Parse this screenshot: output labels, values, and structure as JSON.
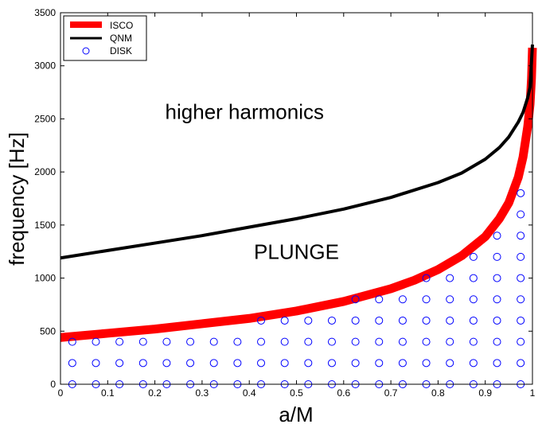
{
  "chart_data": {
    "type": "line",
    "title": "",
    "xlabel": "a/M",
    "ylabel": "frequency [Hz]",
    "xlim": [
      0,
      1
    ],
    "ylim": [
      0,
      3500
    ],
    "x_ticks": [
      "0",
      "0.1",
      "0.2",
      "0.3",
      "0.4",
      "0.5",
      "0.6",
      "0.7",
      "0.8",
      "0.9",
      "1"
    ],
    "y_ticks": [
      "0",
      "500",
      "1000",
      "1500",
      "2000",
      "2500",
      "3000",
      "3500"
    ],
    "grid": false,
    "legend": {
      "position": "top-left",
      "entries": [
        "ISCO",
        "QNM",
        "DISK"
      ]
    },
    "annotations": [
      {
        "text": "higher harmonics",
        "x": 0.39,
        "y": 2500
      },
      {
        "text": "PLUNGE",
        "x": 0.5,
        "y": 1180
      }
    ],
    "series": [
      {
        "name": "ISCO",
        "style": "thick-line",
        "color": "#ff0000",
        "x": [
          0,
          0.1,
          0.2,
          0.3,
          0.4,
          0.5,
          0.6,
          0.65,
          0.7,
          0.75,
          0.8,
          0.85,
          0.9,
          0.93,
          0.95,
          0.97,
          0.98,
          0.99,
          0.995,
          0.998,
          1.0
        ],
        "y": [
          440,
          480,
          520,
          570,
          620,
          690,
          780,
          840,
          900,
          980,
          1080,
          1210,
          1390,
          1560,
          1710,
          1950,
          2140,
          2430,
          2640,
          2880,
          3170
        ]
      },
      {
        "name": "QNM",
        "style": "line",
        "color": "#000000",
        "x": [
          0,
          0.1,
          0.2,
          0.3,
          0.4,
          0.5,
          0.6,
          0.7,
          0.8,
          0.85,
          0.9,
          0.93,
          0.95,
          0.97,
          0.98,
          0.99,
          0.995,
          1.0
        ],
        "y": [
          1190,
          1260,
          1330,
          1400,
          1480,
          1560,
          1650,
          1760,
          1900,
          1990,
          2120,
          2230,
          2330,
          2470,
          2560,
          2700,
          2800,
          3200
        ]
      },
      {
        "name": "DISK",
        "style": "markers",
        "marker": "open-circle",
        "color": "#0000ff",
        "x": [
          0.025,
          0.025,
          0.025,
          0.075,
          0.075,
          0.075,
          0.125,
          0.125,
          0.125,
          0.175,
          0.175,
          0.175,
          0.225,
          0.225,
          0.225,
          0.275,
          0.275,
          0.275,
          0.325,
          0.325,
          0.325,
          0.375,
          0.375,
          0.375,
          0.425,
          0.425,
          0.425,
          0.425,
          0.475,
          0.475,
          0.475,
          0.475,
          0.525,
          0.525,
          0.525,
          0.525,
          0.575,
          0.575,
          0.575,
          0.575,
          0.625,
          0.625,
          0.625,
          0.625,
          0.625,
          0.675,
          0.675,
          0.675,
          0.675,
          0.675,
          0.725,
          0.725,
          0.725,
          0.725,
          0.725,
          0.775,
          0.775,
          0.775,
          0.775,
          0.775,
          0.775,
          0.825,
          0.825,
          0.825,
          0.825,
          0.825,
          0.825,
          0.875,
          0.875,
          0.875,
          0.875,
          0.875,
          0.875,
          0.875,
          0.925,
          0.925,
          0.925,
          0.925,
          0.925,
          0.925,
          0.925,
          0.925,
          0.975,
          0.975,
          0.975,
          0.975,
          0.975,
          0.975,
          0.975,
          0.975,
          0.975,
          0.975
        ],
        "y": [
          0,
          200,
          400,
          0,
          200,
          400,
          0,
          200,
          400,
          0,
          200,
          400,
          0,
          200,
          400,
          0,
          200,
          400,
          0,
          200,
          400,
          0,
          200,
          400,
          0,
          200,
          400,
          600,
          0,
          200,
          400,
          600,
          0,
          200,
          400,
          600,
          0,
          200,
          400,
          600,
          0,
          200,
          400,
          600,
          800,
          0,
          200,
          400,
          600,
          800,
          0,
          200,
          400,
          600,
          800,
          0,
          200,
          400,
          600,
          800,
          1000,
          0,
          200,
          400,
          600,
          800,
          1000,
          0,
          200,
          400,
          600,
          800,
          1000,
          1200,
          0,
          200,
          400,
          600,
          800,
          1000,
          1200,
          1400,
          0,
          200,
          400,
          600,
          800,
          1000,
          1200,
          1400,
          1600,
          1800
        ]
      }
    ]
  }
}
